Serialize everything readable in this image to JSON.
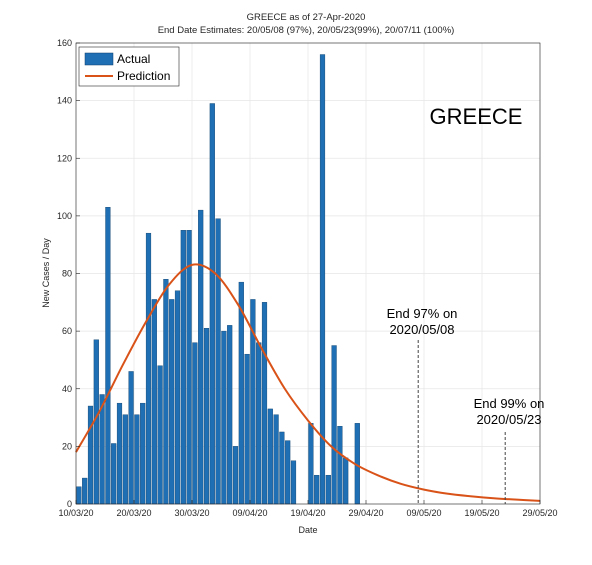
{
  "chart_data": {
    "type": "bar",
    "title": "GREECE as of 27-Apr-2020",
    "subtitle": "End Date Estimates: 20/05/08 (97%), 20/05/23(99%), 20/07/11 (100%)",
    "xlabel": "Date",
    "ylabel": "New Cases / Day",
    "ylim": [
      0,
      160
    ],
    "yticks": [
      0,
      20,
      40,
      60,
      80,
      100,
      120,
      140,
      160
    ],
    "xticks": [
      "10/03/20",
      "20/03/20",
      "30/03/20",
      "09/04/20",
      "19/04/20",
      "29/04/20",
      "09/05/20",
      "19/05/20",
      "29/05/20"
    ],
    "x_start_label": "10/03/20",
    "x_days_span": 80,
    "grid": true,
    "legend_position": "top-left",
    "country_label": "GREECE",
    "colors": {
      "bars": "#1f6fb4",
      "prediction": "#d95319"
    },
    "series": [
      {
        "name": "Actual",
        "type": "bar",
        "values": [
          6,
          9,
          34,
          57,
          38,
          103,
          21,
          35,
          31,
          46,
          31,
          35,
          94,
          71,
          48,
          78,
          71,
          74,
          95,
          95,
          56,
          102,
          61,
          139,
          99,
          60,
          62,
          20,
          77,
          52,
          71,
          56,
          70,
          33,
          31,
          25,
          22,
          15,
          0,
          0,
          28,
          10,
          156,
          10,
          55,
          27,
          16,
          0,
          28
        ]
      },
      {
        "name": "Prediction",
        "type": "line",
        "x": [
          0,
          4,
          8,
          12,
          16,
          20,
          24,
          28,
          32,
          36,
          40,
          44,
          48,
          52,
          56,
          60,
          64,
          68,
          72,
          76,
          80
        ],
        "values": [
          18,
          32,
          48,
          63,
          76,
          83,
          80,
          69,
          54,
          40,
          29,
          20,
          14,
          10,
          7,
          5,
          3.6,
          2.7,
          2.0,
          1.5,
          1.1
        ]
      }
    ],
    "annotations": [
      {
        "line1": "End 97% on",
        "line2": "2020/05/08",
        "x_day": 59
      },
      {
        "line1": "End 99% on",
        "line2": "2020/05/23",
        "x_day": 74
      }
    ]
  }
}
